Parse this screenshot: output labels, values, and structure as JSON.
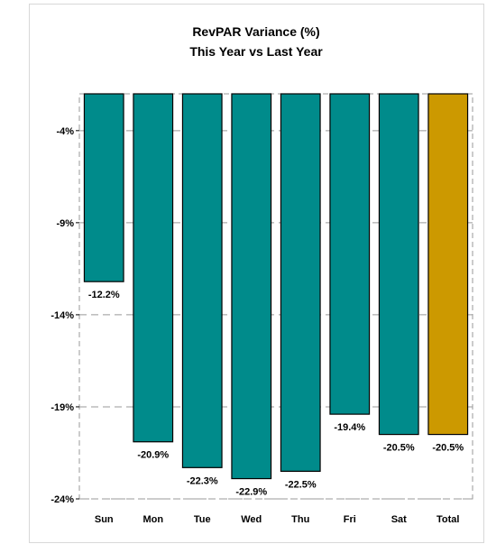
{
  "chart_data": {
    "type": "bar",
    "title": "RevPAR Variance (%)",
    "subtitle": "This Year vs Last Year",
    "categories": [
      "Sun",
      "Mon",
      "Tue",
      "Wed",
      "Thu",
      "Fri",
      "Sat",
      "Total"
    ],
    "values": [
      -12.2,
      -20.9,
      -22.3,
      -22.9,
      -22.5,
      -19.4,
      -20.5,
      -20.5
    ],
    "data_labels": [
      "-12.2%",
      "-20.9%",
      "-22.3%",
      "-22.9%",
      "-22.5%",
      "-19.4%",
      "-20.5%",
      "-20.5%"
    ],
    "y_ticks": [
      -4,
      -9,
      -14,
      -19,
      -24
    ],
    "y_tick_labels": [
      "-4%",
      "-9%",
      "-14%",
      "-19%",
      "-24%"
    ],
    "ylim": [
      -24,
      -2
    ],
    "grid": true,
    "colors": {
      "bar": "#008B8B",
      "total_bar": "#CC9900",
      "grid": "#999999",
      "outline": "#000000"
    }
  }
}
